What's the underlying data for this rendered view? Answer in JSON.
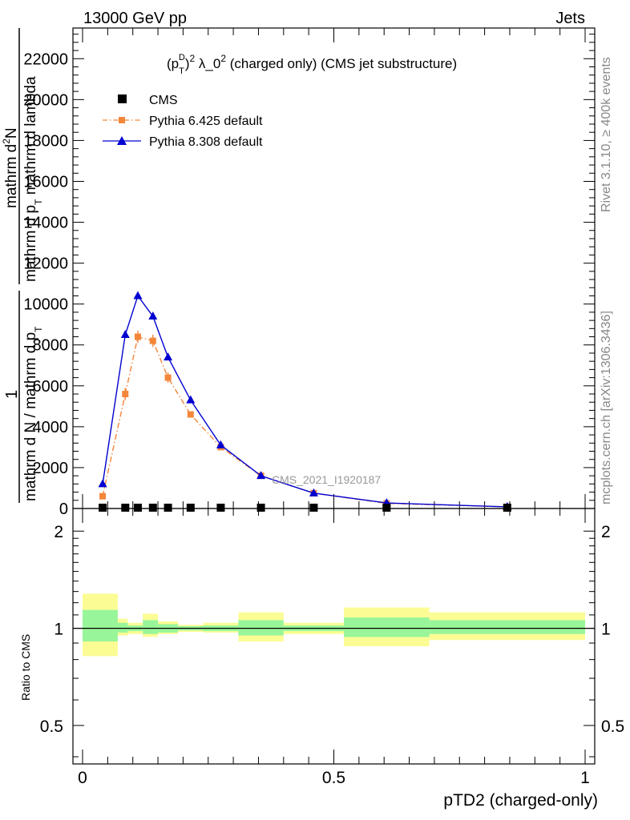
{
  "header": {
    "left": "13000 GeV pp",
    "right": "Jets"
  },
  "side": {
    "top": "Rivet 3.1.10, ≥ 400k events",
    "bottom": "mcplots.cern.ch [arXiv:1306.3436]"
  },
  "colors": {
    "cms": "#000000",
    "pythia6": "#f4863a",
    "pythia8": "#0000d0",
    "band_inner": "#99f599",
    "band_outer": "#fcfc95"
  },
  "chart_data": [
    {
      "type": "line",
      "title_parts": {
        "base": "(p",
        "sub": "T",
        "sup": "D",
        "tail": ")",
        "sup2": "2",
        "mid": " λ_0",
        "sup3": "2",
        "rest": " (charged only) (CMS jet substructure)"
      },
      "ylabel_parts": {
        "frac1_num": "1",
        "frac1_den": "mathrm d N / mathrm d p",
        "frac1_den_sub": "T",
        "frac2_num": "mathrm d",
        "frac2_num_sup": "2",
        "frac2_num_rest": "N",
        "frac2_den": "mathrm d p",
        "frac2_den_sub": "T",
        "frac2_den_rest": " mathrm d lambda"
      },
      "watermark": "CMS_2021_I1920187",
      "xlim": [
        0,
        1
      ],
      "ylim": [
        0,
        23500
      ],
      "yticks": [
        0,
        2000,
        4000,
        6000,
        8000,
        10000,
        12000,
        14000,
        16000,
        18000,
        20000,
        22000
      ],
      "ytick_labels": [
        "0",
        "2000",
        "4000",
        "6000",
        "8000",
        "10000",
        "12000",
        "14000",
        "16000",
        "18000",
        "20000",
        "22000"
      ],
      "legend_position": "top-left",
      "series": [
        {
          "name": "CMS",
          "marker": "square",
          "x": [
            0.04,
            0.085,
            0.11,
            0.14,
            0.17,
            0.215,
            0.275,
            0.355,
            0.46,
            0.605,
            0.845
          ],
          "y": [
            40,
            40,
            40,
            40,
            40,
            40,
            40,
            40,
            40,
            40,
            40
          ]
        },
        {
          "name": "Pythia 6.425 default",
          "marker": "square",
          "line": "dashdot",
          "x": [
            0.04,
            0.085,
            0.11,
            0.14,
            0.17,
            0.215,
            0.275,
            0.355,
            0.46,
            0.605,
            0.845
          ],
          "y": [
            600,
            5600,
            8400,
            8200,
            6400,
            4600,
            3000,
            1600,
            750,
            250,
            80
          ],
          "yerr": [
            150,
            300,
            300,
            300,
            250,
            150,
            100,
            60,
            40,
            20,
            10
          ]
        },
        {
          "name": "Pythia 8.308 default",
          "marker": "triangle",
          "line": "solid",
          "x": [
            0.04,
            0.085,
            0.11,
            0.14,
            0.17,
            0.215,
            0.275,
            0.355,
            0.46,
            0.605,
            0.845
          ],
          "y": [
            1200,
            8500,
            10400,
            9400,
            7400,
            5300,
            3100,
            1600,
            750,
            270,
            80
          ]
        }
      ]
    },
    {
      "type": "area",
      "ylabel": "Ratio to CMS",
      "xlabel": "pTD2 (charged-only)",
      "xlim": [
        0,
        1
      ],
      "ylim": [
        0.38,
        2.35
      ],
      "log_y": true,
      "xticks": [
        0,
        0.5,
        1
      ],
      "xtick_labels": [
        "0",
        "0.5",
        "1"
      ],
      "yticks": [
        0.5,
        1,
        2
      ],
      "ytick_labels": [
        "0.5",
        "1",
        "2"
      ],
      "bins": [
        {
          "x0": 0.0,
          "x1": 0.07,
          "inner": [
            0.91,
            1.14
          ],
          "outer": [
            0.82,
            1.28
          ]
        },
        {
          "x0": 0.07,
          "x1": 0.09,
          "inner": [
            0.97,
            1.04
          ],
          "outer": [
            0.95,
            1.07
          ]
        },
        {
          "x0": 0.09,
          "x1": 0.12,
          "inner": [
            0.98,
            1.02
          ],
          "outer": [
            0.96,
            1.04
          ]
        },
        {
          "x0": 0.12,
          "x1": 0.15,
          "inner": [
            0.96,
            1.06
          ],
          "outer": [
            0.94,
            1.11
          ]
        },
        {
          "x0": 0.15,
          "x1": 0.19,
          "inner": [
            0.97,
            1.03
          ],
          "outer": [
            0.96,
            1.05
          ]
        },
        {
          "x0": 0.19,
          "x1": 0.24,
          "inner": [
            0.985,
            1.015
          ],
          "outer": [
            0.975,
            1.025
          ]
        },
        {
          "x0": 0.24,
          "x1": 0.31,
          "inner": [
            0.98,
            1.02
          ],
          "outer": [
            0.97,
            1.04
          ]
        },
        {
          "x0": 0.31,
          "x1": 0.4,
          "inner": [
            0.95,
            1.06
          ],
          "outer": [
            0.91,
            1.12
          ]
        },
        {
          "x0": 0.4,
          "x1": 0.52,
          "inner": [
            0.98,
            1.02
          ],
          "outer": [
            0.96,
            1.04
          ]
        },
        {
          "x0": 0.52,
          "x1": 0.69,
          "inner": [
            0.94,
            1.08
          ],
          "outer": [
            0.88,
            1.16
          ]
        },
        {
          "x0": 0.69,
          "x1": 1.0,
          "inner": [
            0.96,
            1.06
          ],
          "outer": [
            0.92,
            1.12
          ]
        }
      ]
    }
  ]
}
